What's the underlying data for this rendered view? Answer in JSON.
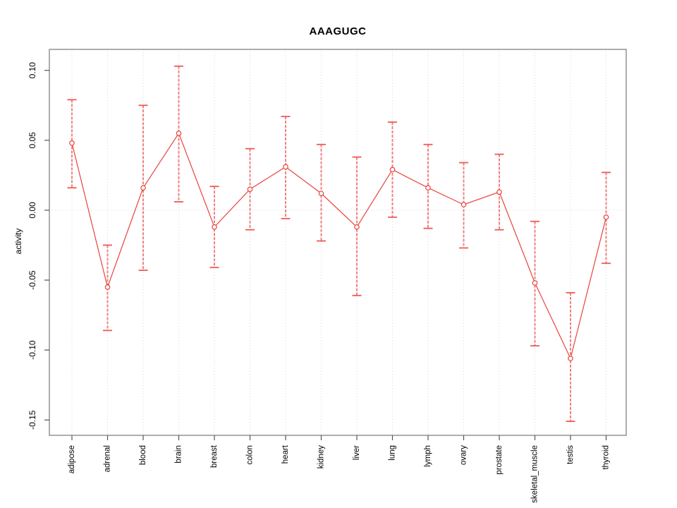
{
  "title": "AAAGUGC",
  "colors": {
    "series": "#e8433c",
    "error_bar": "#f08280",
    "error_cap": "#ee5a55",
    "grid": "#d9d9d9",
    "axis_box": "#777777",
    "tick": "#555555",
    "text": "#000000",
    "background": "#ffffff"
  },
  "chart_data": {
    "type": "line",
    "title": "AAAGUGC",
    "xlabel": "",
    "ylabel": "activity",
    "categories": [
      "adipose",
      "adrenal",
      "blood",
      "brain",
      "breast",
      "colon",
      "heart",
      "kidney",
      "liver",
      "lung",
      "lymph",
      "ovary",
      "prostate",
      "skeletal_muscle",
      "testis",
      "thyroid"
    ],
    "series": [
      {
        "name": "AAAGUGC activity",
        "values": [
          0.048,
          -0.055,
          0.016,
          0.055,
          -0.012,
          0.015,
          0.031,
          0.012,
          -0.012,
          0.029,
          0.016,
          0.004,
          0.013,
          -0.052,
          -0.106,
          -0.005
        ],
        "ci_lower": [
          0.016,
          -0.086,
          -0.043,
          0.006,
          -0.041,
          -0.014,
          -0.006,
          -0.022,
          -0.061,
          -0.005,
          -0.013,
          -0.027,
          -0.014,
          -0.097,
          -0.151,
          -0.038
        ],
        "ci_upper": [
          0.079,
          -0.025,
          0.075,
          0.103,
          0.017,
          0.044,
          0.067,
          0.047,
          0.038,
          0.063,
          0.047,
          0.034,
          0.04,
          -0.008,
          -0.059,
          0.027
        ]
      }
    ],
    "ylim": [
      -0.161,
      0.115
    ],
    "yticks": [
      0.1,
      0.05,
      0.0,
      -0.05,
      -0.1,
      -0.15
    ],
    "ytick_labels": [
      "0.10",
      "0.05",
      "0.00",
      "-0.05",
      "-0.10",
      "-0.15"
    ],
    "grid": {
      "vertical": "dotted line at each category",
      "horizontal": "dotted line at y=0"
    },
    "legend": "none",
    "marker": "open-circle",
    "error_bars": true
  }
}
